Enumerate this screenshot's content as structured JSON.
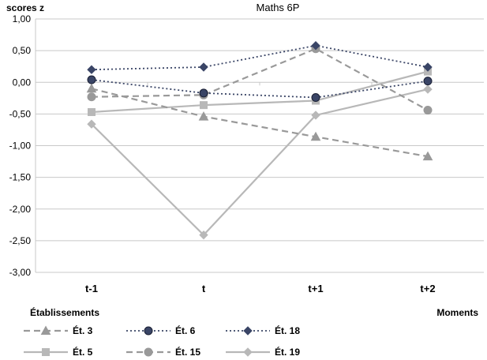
{
  "chart_data": {
    "type": "line",
    "title": "Maths 6P",
    "ylabel": "scores z",
    "xlabel": "Moments",
    "legend_title": "Établissements",
    "categories": [
      "t-1",
      "t",
      "t+1",
      "t+2"
    ],
    "ylim": [
      -3,
      1
    ],
    "yticks": [
      "1,00",
      "0,50",
      "0,00",
      "-0,50",
      "-1,00",
      "-1,50",
      "-2,00",
      "-2,50",
      "-3,00"
    ],
    "grid": true,
    "legend_position": "bottom",
    "series": [
      {
        "name": "Ét. 3",
        "values": [
          -0.1,
          -0.54,
          -0.86,
          -1.17
        ],
        "color": "#999999",
        "dash": "dashed",
        "marker": "triangle"
      },
      {
        "name": "Ét. 6",
        "values": [
          0.04,
          -0.17,
          -0.24,
          0.02
        ],
        "color": "#3a4566",
        "dash": "dotted",
        "marker": "circle"
      },
      {
        "name": "Ét. 18",
        "values": [
          0.2,
          0.24,
          0.58,
          0.24
        ],
        "color": "#3a4566",
        "dash": "dotted",
        "marker": "diamond"
      },
      {
        "name": "Ét. 5",
        "values": [
          -0.47,
          -0.36,
          -0.29,
          0.17
        ],
        "color": "#b8b8b8",
        "dash": "solid",
        "marker": "square"
      },
      {
        "name": "Ét. 15",
        "values": [
          -0.23,
          -0.2,
          0.53,
          -0.44
        ],
        "color": "#999999",
        "dash": "dashed",
        "marker": "circle"
      },
      {
        "name": "Ét. 19",
        "values": [
          -0.66,
          -2.41,
          -0.52,
          -0.11
        ],
        "color": "#b8b8b8",
        "dash": "solid",
        "marker": "diamond"
      }
    ]
  }
}
